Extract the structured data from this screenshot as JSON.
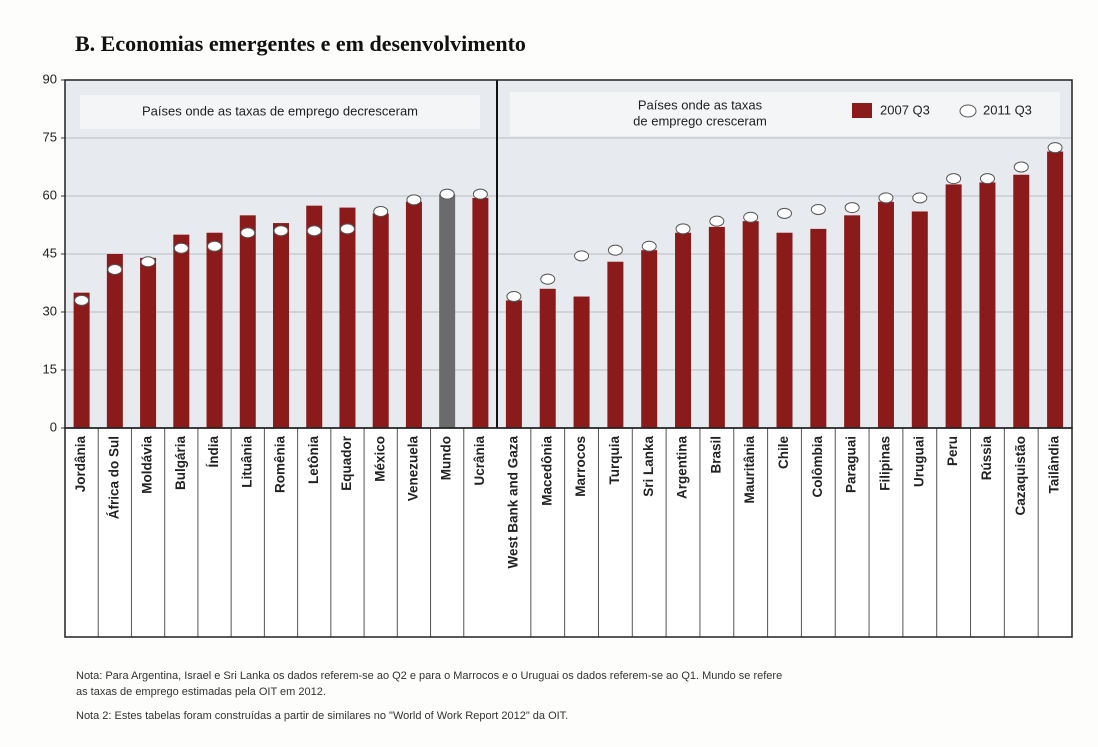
{
  "chart_data": {
    "type": "bar",
    "title": "B. Economias emergentes e em desenvolvimento",
    "ylim": [
      0,
      90
    ],
    "yticks": [
      0,
      15,
      30,
      45,
      60,
      75,
      90
    ],
    "grid": true,
    "legend": "top-right",
    "series": [
      {
        "name": "2007 Q3",
        "color": "#8b1a1a",
        "marker": "bar"
      },
      {
        "name": "2011 Q3",
        "color": "#ffffff",
        "marker": "circle"
      }
    ],
    "panels": [
      {
        "annotation": [
          "Países onde as taxas de emprego decresceram"
        ],
        "categories": [
          "Jordânia",
          "África do Sul",
          "Moldávia",
          "Bulgária",
          "Índia",
          "Lituânia",
          "Romênia",
          "Letônia",
          "Equador",
          "México",
          "Venezuela",
          "Mundo",
          "Ucrânia"
        ],
        "series": [
          {
            "values": [
              35,
              45,
              44,
              50,
              50.5,
              55,
              53,
              57.5,
              57,
              55.5,
              58.5,
              60.5,
              59.5
            ],
            "colors": [
              "#8b1a1a",
              "#8b1a1a",
              "#8b1a1a",
              "#8b1a1a",
              "#8b1a1a",
              "#8b1a1a",
              "#8b1a1a",
              "#8b1a1a",
              "#8b1a1a",
              "#8b1a1a",
              "#8b1a1a",
              "#6b6b6b",
              "#8b1a1a"
            ]
          },
          {
            "values": [
              33,
              41,
              43,
              46.5,
              47,
              50.5,
              51,
              51,
              51.5,
              56,
              59,
              60.5,
              60.5
            ]
          }
        ]
      },
      {
        "annotation": [
          "Países onde as taxas",
          "de emprego cresceram"
        ],
        "categories": [
          "West Bank and Gaza",
          "Macedônia",
          "Marrocos",
          "Turquia",
          "Sri Lanka",
          "Argentina",
          "Brasil",
          "Mauritânia",
          "Chile",
          "Colômbia",
          "Paraguai",
          "Filipinas",
          "Uruguai",
          "Peru",
          "Rússia",
          "Cazaquistão",
          "Tailândia"
        ],
        "series": [
          {
            "values": [
              33,
              36,
              34,
              43,
              46,
              50.5,
              52,
              53.5,
              50.5,
              51.5,
              55,
              58.5,
              56,
              63,
              63.5,
              65.5,
              71.5
            ]
          },
          {
            "values": [
              34,
              38.5,
              44.5,
              46,
              47,
              51.5,
              53.5,
              54.5,
              55.5,
              56.5,
              57,
              59.5,
              59.5,
              64.5,
              64.5,
              67.5,
              72.5
            ]
          }
        ]
      }
    ],
    "notes": [
      "Nota: Para Argentina, Israel e Sri Lanka os dados referem-se ao Q2 e para o Marrocos e o Uruguai os dados referem-se ao Q1. Mundo se refere",
      "as taxas de emprego estimadas pela OIT em 2012.",
      "Nota 2: Estes tabelas foram construídas a partir de similares no \"World of Work Report 2012\" da OIT."
    ]
  }
}
